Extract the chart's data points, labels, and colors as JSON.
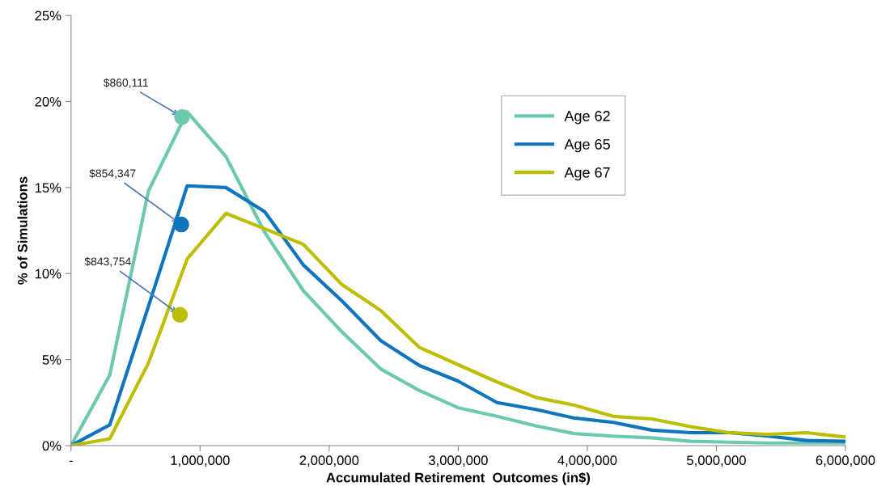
{
  "chart_data": {
    "type": "line",
    "xlabel": "Accumulated Retirement  Outcomes (in$)",
    "ylabel": "% of Simulations",
    "x": [
      0,
      300000,
      600000,
      900000,
      1200000,
      1500000,
      1800000,
      2100000,
      2400000,
      2700000,
      3000000,
      3300000,
      3600000,
      3900000,
      4200000,
      4500000,
      4800000,
      5100000,
      5400000,
      5700000,
      6000000
    ],
    "series": [
      {
        "name": "Age 62",
        "color": "#6cc9b0",
        "values": [
          0,
          4.1,
          14.8,
          19.4,
          16.8,
          12.4,
          9.0,
          6.6,
          4.45,
          3.2,
          2.2,
          1.7,
          1.15,
          0.7,
          0.55,
          0.45,
          0.25,
          0.2,
          0.15,
          0.15,
          0.15
        ]
      },
      {
        "name": "Age 65",
        "color": "#0f75bc",
        "values": [
          0,
          1.2,
          8.1,
          15.1,
          15.0,
          13.6,
          10.5,
          8.4,
          6.1,
          4.65,
          3.75,
          2.5,
          2.1,
          1.6,
          1.35,
          0.9,
          0.75,
          0.75,
          0.55,
          0.3,
          0.25
        ]
      },
      {
        "name": "Age 67",
        "color": "#bcbf00",
        "values": [
          0,
          0.4,
          4.8,
          10.85,
          13.5,
          12.6,
          11.7,
          9.35,
          7.85,
          5.7,
          4.7,
          3.7,
          2.8,
          2.35,
          1.7,
          1.55,
          1.1,
          0.75,
          0.65,
          0.75,
          0.5
        ]
      },
      {
        "type": "scatter",
        "marker": "circle",
        "color": "#6cc9b0",
        "x": [
          860111
        ],
        "values": [
          19.1
        ]
      },
      {
        "type": "scatter",
        "marker": "circle",
        "color": "#0f75bc",
        "x": [
          854347
        ],
        "values": [
          12.85
        ]
      },
      {
        "type": "scatter",
        "marker": "circle",
        "color": "#bcbf00",
        "x": [
          843754
        ],
        "values": [
          7.6
        ]
      }
    ],
    "annotations": [
      {
        "text": "$860,111",
        "x": 860111,
        "y": 19.1
      },
      {
        "text": "$854,347",
        "x": 854347,
        "y": 12.85
      },
      {
        "text": "$843,754",
        "x": 843754,
        "y": 7.6
      }
    ],
    "xlim": [
      0,
      6000000
    ],
    "xticks": [
      {
        "value": 0,
        "label": "-"
      },
      {
        "value": 1000000,
        "label": "1,000,000"
      },
      {
        "value": 2000000,
        "label": "2,000,000"
      },
      {
        "value": 3000000,
        "label": "3,000,000"
      },
      {
        "value": 4000000,
        "label": "4,000,000"
      },
      {
        "value": 5000000,
        "label": "5,000,000"
      },
      {
        "value": 6000000,
        "label": "6,000,000"
      }
    ],
    "ylim": [
      0,
      25
    ],
    "yticks": [
      {
        "value": 0,
        "label": "0%"
      },
      {
        "value": 5,
        "label": "5%"
      },
      {
        "value": 10,
        "label": "10%"
      },
      {
        "value": 15,
        "label": "15%"
      },
      {
        "value": 20,
        "label": "20%"
      },
      {
        "value": 25,
        "label": "25%"
      }
    ],
    "legend": "top right",
    "grid": false,
    "marker": "none",
    "line_style": "solid"
  }
}
